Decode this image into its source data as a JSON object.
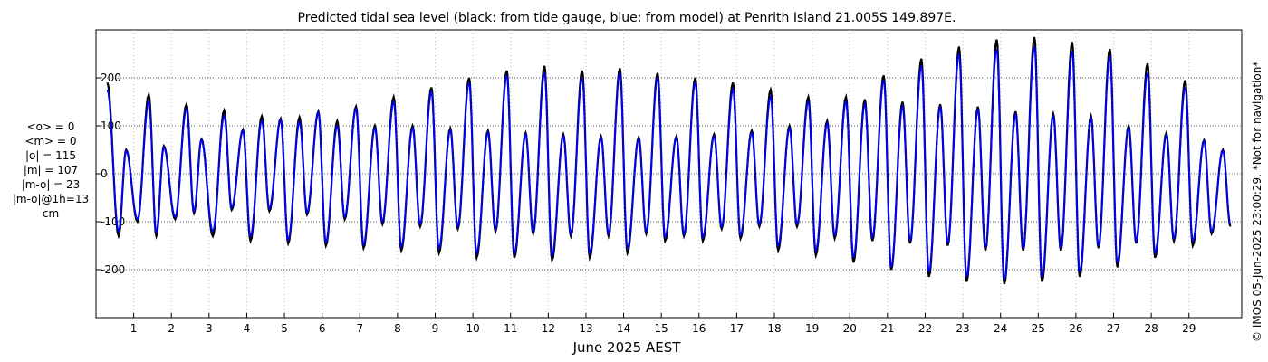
{
  "chart_data": {
    "type": "line",
    "title": "Predicted tidal sea level (black: from tide gauge, blue: from model) at Penrith Island 21.005S 149.897E.",
    "xlabel": "June 2025 AEST",
    "ylabel": "",
    "xlim": [
      0.0,
      30.4
    ],
    "ylim": [
      -300,
      300
    ],
    "x_ticks": [
      1,
      2,
      3,
      4,
      5,
      6,
      7,
      8,
      9,
      10,
      11,
      12,
      13,
      14,
      15,
      16,
      17,
      18,
      19,
      20,
      21,
      22,
      23,
      24,
      25,
      26,
      27,
      28,
      29
    ],
    "y_ticks": [
      -200,
      -100,
      0,
      100,
      200
    ],
    "grid": true,
    "stats": [
      "<o> = 0",
      "<m> = 0",
      "|o| = 115",
      "|m| = 107",
      "|m-o| = 23",
      "|m-o|@1h=13",
      "cm"
    ],
    "side_note": "© IMOS 05-Jun-2025 23:00:29. *Not for navigation*",
    "series": [
      {
        "name": "tide gauge",
        "color": "#000000",
        "high_tides": [
          [
            0.3,
            190
          ],
          [
            0.8,
            50
          ],
          [
            1.4,
            165
          ],
          [
            1.8,
            58
          ],
          [
            2.4,
            145
          ],
          [
            2.8,
            72
          ],
          [
            3.4,
            132
          ],
          [
            3.9,
            92
          ],
          [
            4.4,
            120
          ],
          [
            4.9,
            115
          ],
          [
            5.4,
            118
          ],
          [
            5.9,
            130
          ],
          [
            6.4,
            110
          ],
          [
            6.9,
            140
          ],
          [
            7.4,
            100
          ],
          [
            7.9,
            160
          ],
          [
            8.4,
            100
          ],
          [
            8.9,
            180
          ],
          [
            9.4,
            95
          ],
          [
            9.9,
            200
          ],
          [
            10.4,
            90
          ],
          [
            10.9,
            215
          ],
          [
            11.4,
            85
          ],
          [
            11.9,
            225
          ],
          [
            12.4,
            82
          ],
          [
            12.9,
            215
          ],
          [
            13.4,
            78
          ],
          [
            13.9,
            220
          ],
          [
            14.4,
            76
          ],
          [
            14.9,
            210
          ],
          [
            15.4,
            78
          ],
          [
            15.9,
            200
          ],
          [
            16.4,
            82
          ],
          [
            16.9,
            190
          ],
          [
            17.4,
            90
          ],
          [
            17.9,
            175
          ],
          [
            18.4,
            100
          ],
          [
            18.9,
            160
          ],
          [
            19.4,
            110
          ],
          [
            19.9,
            160
          ],
          [
            20.4,
            155
          ],
          [
            20.9,
            205
          ],
          [
            21.4,
            150
          ],
          [
            21.9,
            240
          ],
          [
            22.4,
            145
          ],
          [
            22.9,
            265
          ],
          [
            23.4,
            140
          ],
          [
            23.9,
            280
          ],
          [
            24.4,
            130
          ],
          [
            24.9,
            285
          ],
          [
            25.4,
            125
          ],
          [
            25.9,
            275
          ],
          [
            26.4,
            120
          ],
          [
            26.9,
            260
          ],
          [
            27.4,
            100
          ],
          [
            27.9,
            230
          ],
          [
            28.4,
            85
          ],
          [
            28.9,
            195
          ],
          [
            29.4,
            70
          ],
          [
            29.9,
            50
          ]
        ],
        "low_tides": [
          [
            0.6,
            -130
          ],
          [
            1.1,
            -100
          ],
          [
            1.6,
            -130
          ],
          [
            2.1,
            -95
          ],
          [
            2.6,
            -82
          ],
          [
            3.1,
            -130
          ],
          [
            3.6,
            -75
          ],
          [
            4.1,
            -140
          ],
          [
            4.6,
            -78
          ],
          [
            5.1,
            -145
          ],
          [
            5.6,
            -85
          ],
          [
            6.1,
            -150
          ],
          [
            6.6,
            -95
          ],
          [
            7.1,
            -155
          ],
          [
            7.6,
            -105
          ],
          [
            8.1,
            -160
          ],
          [
            8.6,
            -110
          ],
          [
            9.1,
            -165
          ],
          [
            9.6,
            -115
          ],
          [
            10.1,
            -175
          ],
          [
            10.6,
            -120
          ],
          [
            11.1,
            -175
          ],
          [
            11.6,
            -125
          ],
          [
            12.1,
            -180
          ],
          [
            12.6,
            -130
          ],
          [
            13.1,
            -175
          ],
          [
            13.6,
            -130
          ],
          [
            14.1,
            -165
          ],
          [
            14.6,
            -125
          ],
          [
            15.1,
            -140
          ],
          [
            15.6,
            -130
          ],
          [
            16.1,
            -140
          ],
          [
            16.6,
            -115
          ],
          [
            17.1,
            -135
          ],
          [
            17.6,
            -110
          ],
          [
            18.1,
            -160
          ],
          [
            18.6,
            -110
          ],
          [
            19.1,
            -170
          ],
          [
            19.6,
            -135
          ],
          [
            20.1,
            -185
          ],
          [
            20.6,
            -140
          ],
          [
            21.1,
            -200
          ],
          [
            21.6,
            -145
          ],
          [
            22.1,
            -215
          ],
          [
            22.6,
            -150
          ],
          [
            23.1,
            -225
          ],
          [
            23.6,
            -160
          ],
          [
            24.1,
            -230
          ],
          [
            24.6,
            -160
          ],
          [
            25.1,
            -225
          ],
          [
            25.6,
            -160
          ],
          [
            26.1,
            -215
          ],
          [
            26.6,
            -155
          ],
          [
            27.1,
            -195
          ],
          [
            27.6,
            -145
          ],
          [
            28.1,
            -175
          ],
          [
            28.6,
            -140
          ],
          [
            29.1,
            -150
          ],
          [
            29.6,
            -125
          ],
          [
            30.1,
            -110
          ]
        ]
      },
      {
        "name": "model",
        "color": "#0000ff",
        "high_tides": [
          [
            0.3,
            175
          ],
          [
            0.8,
            48
          ],
          [
            1.4,
            150
          ],
          [
            1.8,
            55
          ],
          [
            2.4,
            135
          ],
          [
            2.8,
            70
          ],
          [
            3.4,
            120
          ],
          [
            3.9,
            90
          ],
          [
            4.4,
            110
          ],
          [
            4.9,
            112
          ],
          [
            5.4,
            108
          ],
          [
            5.9,
            128
          ],
          [
            6.4,
            100
          ],
          [
            6.9,
            135
          ],
          [
            7.4,
            95
          ],
          [
            7.9,
            150
          ],
          [
            8.4,
            95
          ],
          [
            8.9,
            170
          ],
          [
            9.4,
            90
          ],
          [
            9.9,
            190
          ],
          [
            10.4,
            86
          ],
          [
            10.9,
            205
          ],
          [
            11.4,
            82
          ],
          [
            11.9,
            210
          ],
          [
            12.4,
            78
          ],
          [
            12.9,
            200
          ],
          [
            13.4,
            75
          ],
          [
            13.9,
            210
          ],
          [
            14.4,
            72
          ],
          [
            14.9,
            200
          ],
          [
            15.4,
            75
          ],
          [
            15.9,
            190
          ],
          [
            16.4,
            78
          ],
          [
            16.9,
            175
          ],
          [
            17.4,
            85
          ],
          [
            17.9,
            160
          ],
          [
            18.4,
            95
          ],
          [
            18.9,
            150
          ],
          [
            19.4,
            105
          ],
          [
            19.9,
            150
          ],
          [
            20.4,
            145
          ],
          [
            20.9,
            195
          ],
          [
            21.4,
            140
          ],
          [
            21.9,
            225
          ],
          [
            22.4,
            140
          ],
          [
            22.9,
            250
          ],
          [
            23.4,
            135
          ],
          [
            23.9,
            260
          ],
          [
            24.4,
            122
          ],
          [
            24.9,
            265
          ],
          [
            25.4,
            120
          ],
          [
            25.9,
            255
          ],
          [
            26.4,
            115
          ],
          [
            26.9,
            245
          ],
          [
            27.4,
            95
          ],
          [
            27.9,
            210
          ],
          [
            28.4,
            80
          ],
          [
            28.9,
            180
          ],
          [
            29.4,
            68
          ],
          [
            29.9,
            48
          ]
        ],
        "low_tides": [
          [
            0.6,
            -120
          ],
          [
            1.1,
            -95
          ],
          [
            1.6,
            -122
          ],
          [
            2.1,
            -90
          ],
          [
            2.6,
            -78
          ],
          [
            3.1,
            -120
          ],
          [
            3.6,
            -70
          ],
          [
            4.1,
            -130
          ],
          [
            4.6,
            -72
          ],
          [
            5.1,
            -138
          ],
          [
            5.6,
            -80
          ],
          [
            6.1,
            -142
          ],
          [
            6.6,
            -90
          ],
          [
            7.1,
            -148
          ],
          [
            7.6,
            -100
          ],
          [
            8.1,
            -152
          ],
          [
            8.6,
            -105
          ],
          [
            9.1,
            -155
          ],
          [
            9.6,
            -110
          ],
          [
            10.1,
            -165
          ],
          [
            10.6,
            -115
          ],
          [
            11.1,
            -165
          ],
          [
            11.6,
            -120
          ],
          [
            12.1,
            -170
          ],
          [
            12.6,
            -125
          ],
          [
            13.1,
            -165
          ],
          [
            13.6,
            -125
          ],
          [
            14.1,
            -155
          ],
          [
            14.6,
            -120
          ],
          [
            15.1,
            -132
          ],
          [
            15.6,
            -125
          ],
          [
            16.1,
            -132
          ],
          [
            16.6,
            -110
          ],
          [
            17.1,
            -128
          ],
          [
            17.6,
            -105
          ],
          [
            18.1,
            -150
          ],
          [
            18.6,
            -105
          ],
          [
            19.1,
            -160
          ],
          [
            19.6,
            -128
          ],
          [
            20.1,
            -175
          ],
          [
            20.6,
            -132
          ],
          [
            21.1,
            -195
          ],
          [
            21.6,
            -140
          ],
          [
            22.1,
            -205
          ],
          [
            22.6,
            -145
          ],
          [
            23.1,
            -215
          ],
          [
            23.6,
            -155
          ],
          [
            24.1,
            -220
          ],
          [
            24.6,
            -155
          ],
          [
            25.1,
            -215
          ],
          [
            25.6,
            -155
          ],
          [
            26.1,
            -205
          ],
          [
            26.6,
            -150
          ],
          [
            27.1,
            -185
          ],
          [
            27.6,
            -140
          ],
          [
            28.1,
            -165
          ],
          [
            28.6,
            -135
          ],
          [
            29.1,
            -140
          ],
          [
            29.6,
            -120
          ],
          [
            30.1,
            -105
          ]
        ]
      }
    ]
  }
}
